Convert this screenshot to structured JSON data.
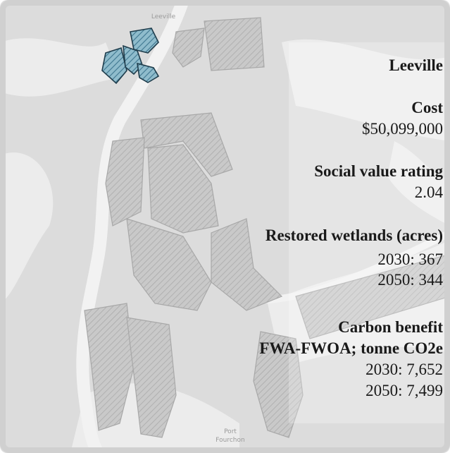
{
  "map_labels": {
    "top": "Leeville",
    "bottom_line1": "Port",
    "bottom_line2": "Fourchon"
  },
  "panel": {
    "title": "Leeville",
    "cost": {
      "label": "Cost",
      "value": "$50,099,000"
    },
    "social_value": {
      "label": "Social value rating",
      "value": "2.04"
    },
    "restored_wetlands": {
      "label": "Restored wetlands (acres)",
      "lines": [
        "2030: 367",
        "2050: 344"
      ]
    },
    "carbon_benefit": {
      "label": "Carbon benefit",
      "sublabel": "FWA-FWOA; tonne CO2e",
      "lines": [
        "2030: 7,652",
        "2050: 7,499"
      ]
    }
  }
}
